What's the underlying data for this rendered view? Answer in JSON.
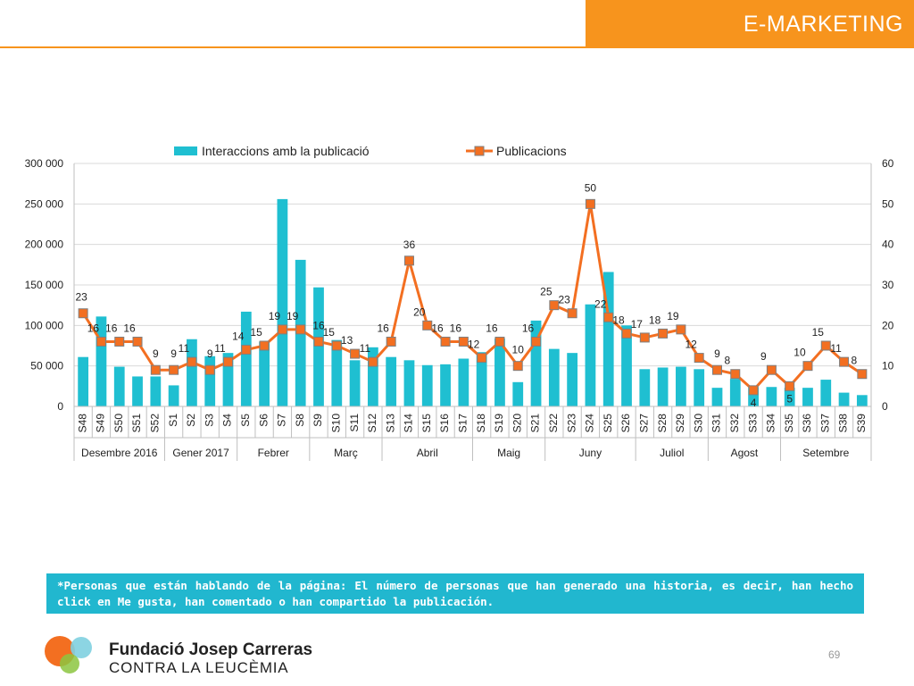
{
  "header": {
    "title": "E-MARKETING"
  },
  "colors": {
    "accent": "#f7941d",
    "bars": "#1fbfd1",
    "line": "#f36f21",
    "marker_border": "#7f7f7f",
    "note_bg": "#21b7cf"
  },
  "chart_data": {
    "type": "bar+line",
    "title": "",
    "legend": {
      "position": "top",
      "entries": [
        "Interaccions amb la publicació",
        "Publicacions"
      ]
    },
    "categories": [
      "S48",
      "S49",
      "S50",
      "S51",
      "S52",
      "S1",
      "S2",
      "S3",
      "S4",
      "S5",
      "S6",
      "S7",
      "S8",
      "S9",
      "S10",
      "S11",
      "S12",
      "S13",
      "S14",
      "S15",
      "S16",
      "S17",
      "S18",
      "S19",
      "S20",
      "S21",
      "S22",
      "S23",
      "S24",
      "S25",
      "S26",
      "S27",
      "S28",
      "S29",
      "S30",
      "S31",
      "S32",
      "S33",
      "S34",
      "S35",
      "S36",
      "S37",
      "S38",
      "S39"
    ],
    "month_groups": [
      {
        "label": "Desembre 2016",
        "count": 5
      },
      {
        "label": "Gener 2017",
        "count": 4
      },
      {
        "label": "Febrer",
        "count": 4
      },
      {
        "label": "Març",
        "count": 4
      },
      {
        "label": "Abril",
        "count": 5
      },
      {
        "label": "Maig",
        "count": 4
      },
      {
        "label": "Juny",
        "count": 5
      },
      {
        "label": "Juliol",
        "count": 4
      },
      {
        "label": "Agost",
        "count": 4
      },
      {
        "label": "Setembre",
        "count": 5
      }
    ],
    "series": [
      {
        "name": "Interaccions amb la publicació",
        "type": "bar",
        "axis": "left",
        "values": [
          61000,
          111000,
          49000,
          37000,
          37000,
          26000,
          83000,
          62000,
          66000,
          117000,
          80000,
          256000,
          181000,
          147000,
          82000,
          57000,
          73000,
          61000,
          57000,
          51000,
          52000,
          59000,
          67000,
          84000,
          30000,
          106000,
          71000,
          66000,
          126000,
          166000,
          100000,
          46000,
          48000,
          49000,
          46000,
          23000,
          34000,
          24000,
          24000,
          23000,
          23000,
          33000,
          17000,
          14000
        ]
      },
      {
        "name": "Publicacions",
        "type": "line",
        "axis": "right",
        "values": [
          23,
          16,
          16,
          16,
          9,
          9,
          11,
          9,
          11,
          14,
          15,
          19,
          19,
          16,
          15,
          13,
          11,
          16,
          36,
          20,
          16,
          16,
          12,
          16,
          10,
          16,
          25,
          23,
          50,
          22,
          18,
          17,
          18,
          19,
          12,
          9,
          8,
          4,
          9,
          5,
          10,
          15,
          11,
          8
        ]
      }
    ],
    "y_left": {
      "min": 0,
      "max": 300000,
      "ticks": [
        "0",
        "50 000",
        "100 000",
        "150 000",
        "200 000",
        "250 000",
        "300 000"
      ]
    },
    "y_right": {
      "min": 0,
      "max": 60,
      "ticks": [
        "0",
        "10",
        "20",
        "30",
        "40",
        "50",
        "60"
      ]
    }
  },
  "note": {
    "text": "*Personas que están hablando de la página: El número de personas que han generado una historia, es decir, han hecho click en Me gusta, han comentado o han compartido la publicación."
  },
  "footer": {
    "org_name": "Fundació Josep Carreras",
    "org_sub": "CONTRA LA LEUCÈMIA",
    "page_number": "69"
  }
}
